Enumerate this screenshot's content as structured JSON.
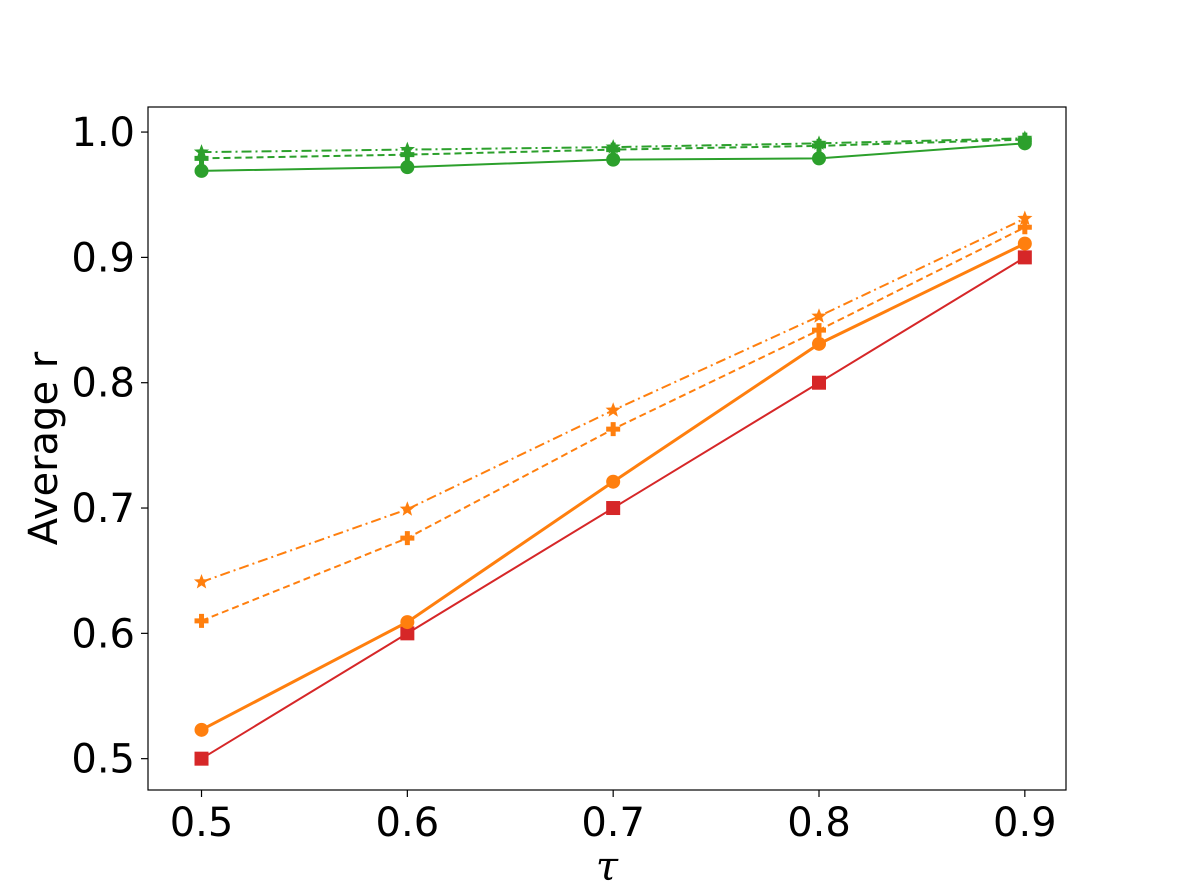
{
  "chart_data": {
    "type": "line",
    "xlabel": "τ",
    "ylabel": "Average r",
    "x": [
      0.5,
      0.6,
      0.7,
      0.8,
      0.9
    ],
    "x_ticks": [
      "0.5",
      "0.6",
      "0.7",
      "0.8",
      "0.9"
    ],
    "y_ticks": [
      "0.5",
      "0.6",
      "0.7",
      "0.8",
      "0.9",
      "1.0"
    ],
    "xlim": [
      0.474,
      0.92
    ],
    "ylim": [
      0.475,
      1.02
    ],
    "grid": false,
    "series": [
      {
        "values": [
          0.5,
          0.6,
          0.7,
          0.8,
          0.9
        ],
        "color": "#d62728",
        "linestyle": "solid",
        "marker": "square",
        "linewidth": "thin"
      },
      {
        "values": [
          0.523,
          0.609,
          0.721,
          0.831,
          0.911
        ],
        "color": "#ff7f0e",
        "linestyle": "solid",
        "marker": "circle",
        "linewidth": "thick"
      },
      {
        "values": [
          0.61,
          0.676,
          0.763,
          0.842,
          0.924
        ],
        "color": "#ff7f0e",
        "linestyle": "dashed",
        "marker": "plus"
      },
      {
        "values": [
          0.641,
          0.699,
          0.778,
          0.853,
          0.931
        ],
        "color": "#ff7f0e",
        "linestyle": "dashdot",
        "marker": "star"
      },
      {
        "values": [
          0.969,
          0.972,
          0.978,
          0.979,
          0.991
        ],
        "color": "#2ca02c",
        "linestyle": "solid",
        "marker": "circle"
      },
      {
        "values": [
          0.979,
          0.982,
          0.986,
          0.989,
          0.994
        ],
        "color": "#2ca02c",
        "linestyle": "dashed",
        "marker": "plus"
      },
      {
        "values": [
          0.984,
          0.986,
          0.988,
          0.991,
          0.995
        ],
        "color": "#2ca02c",
        "linestyle": "dashdot",
        "marker": "star"
      }
    ]
  }
}
